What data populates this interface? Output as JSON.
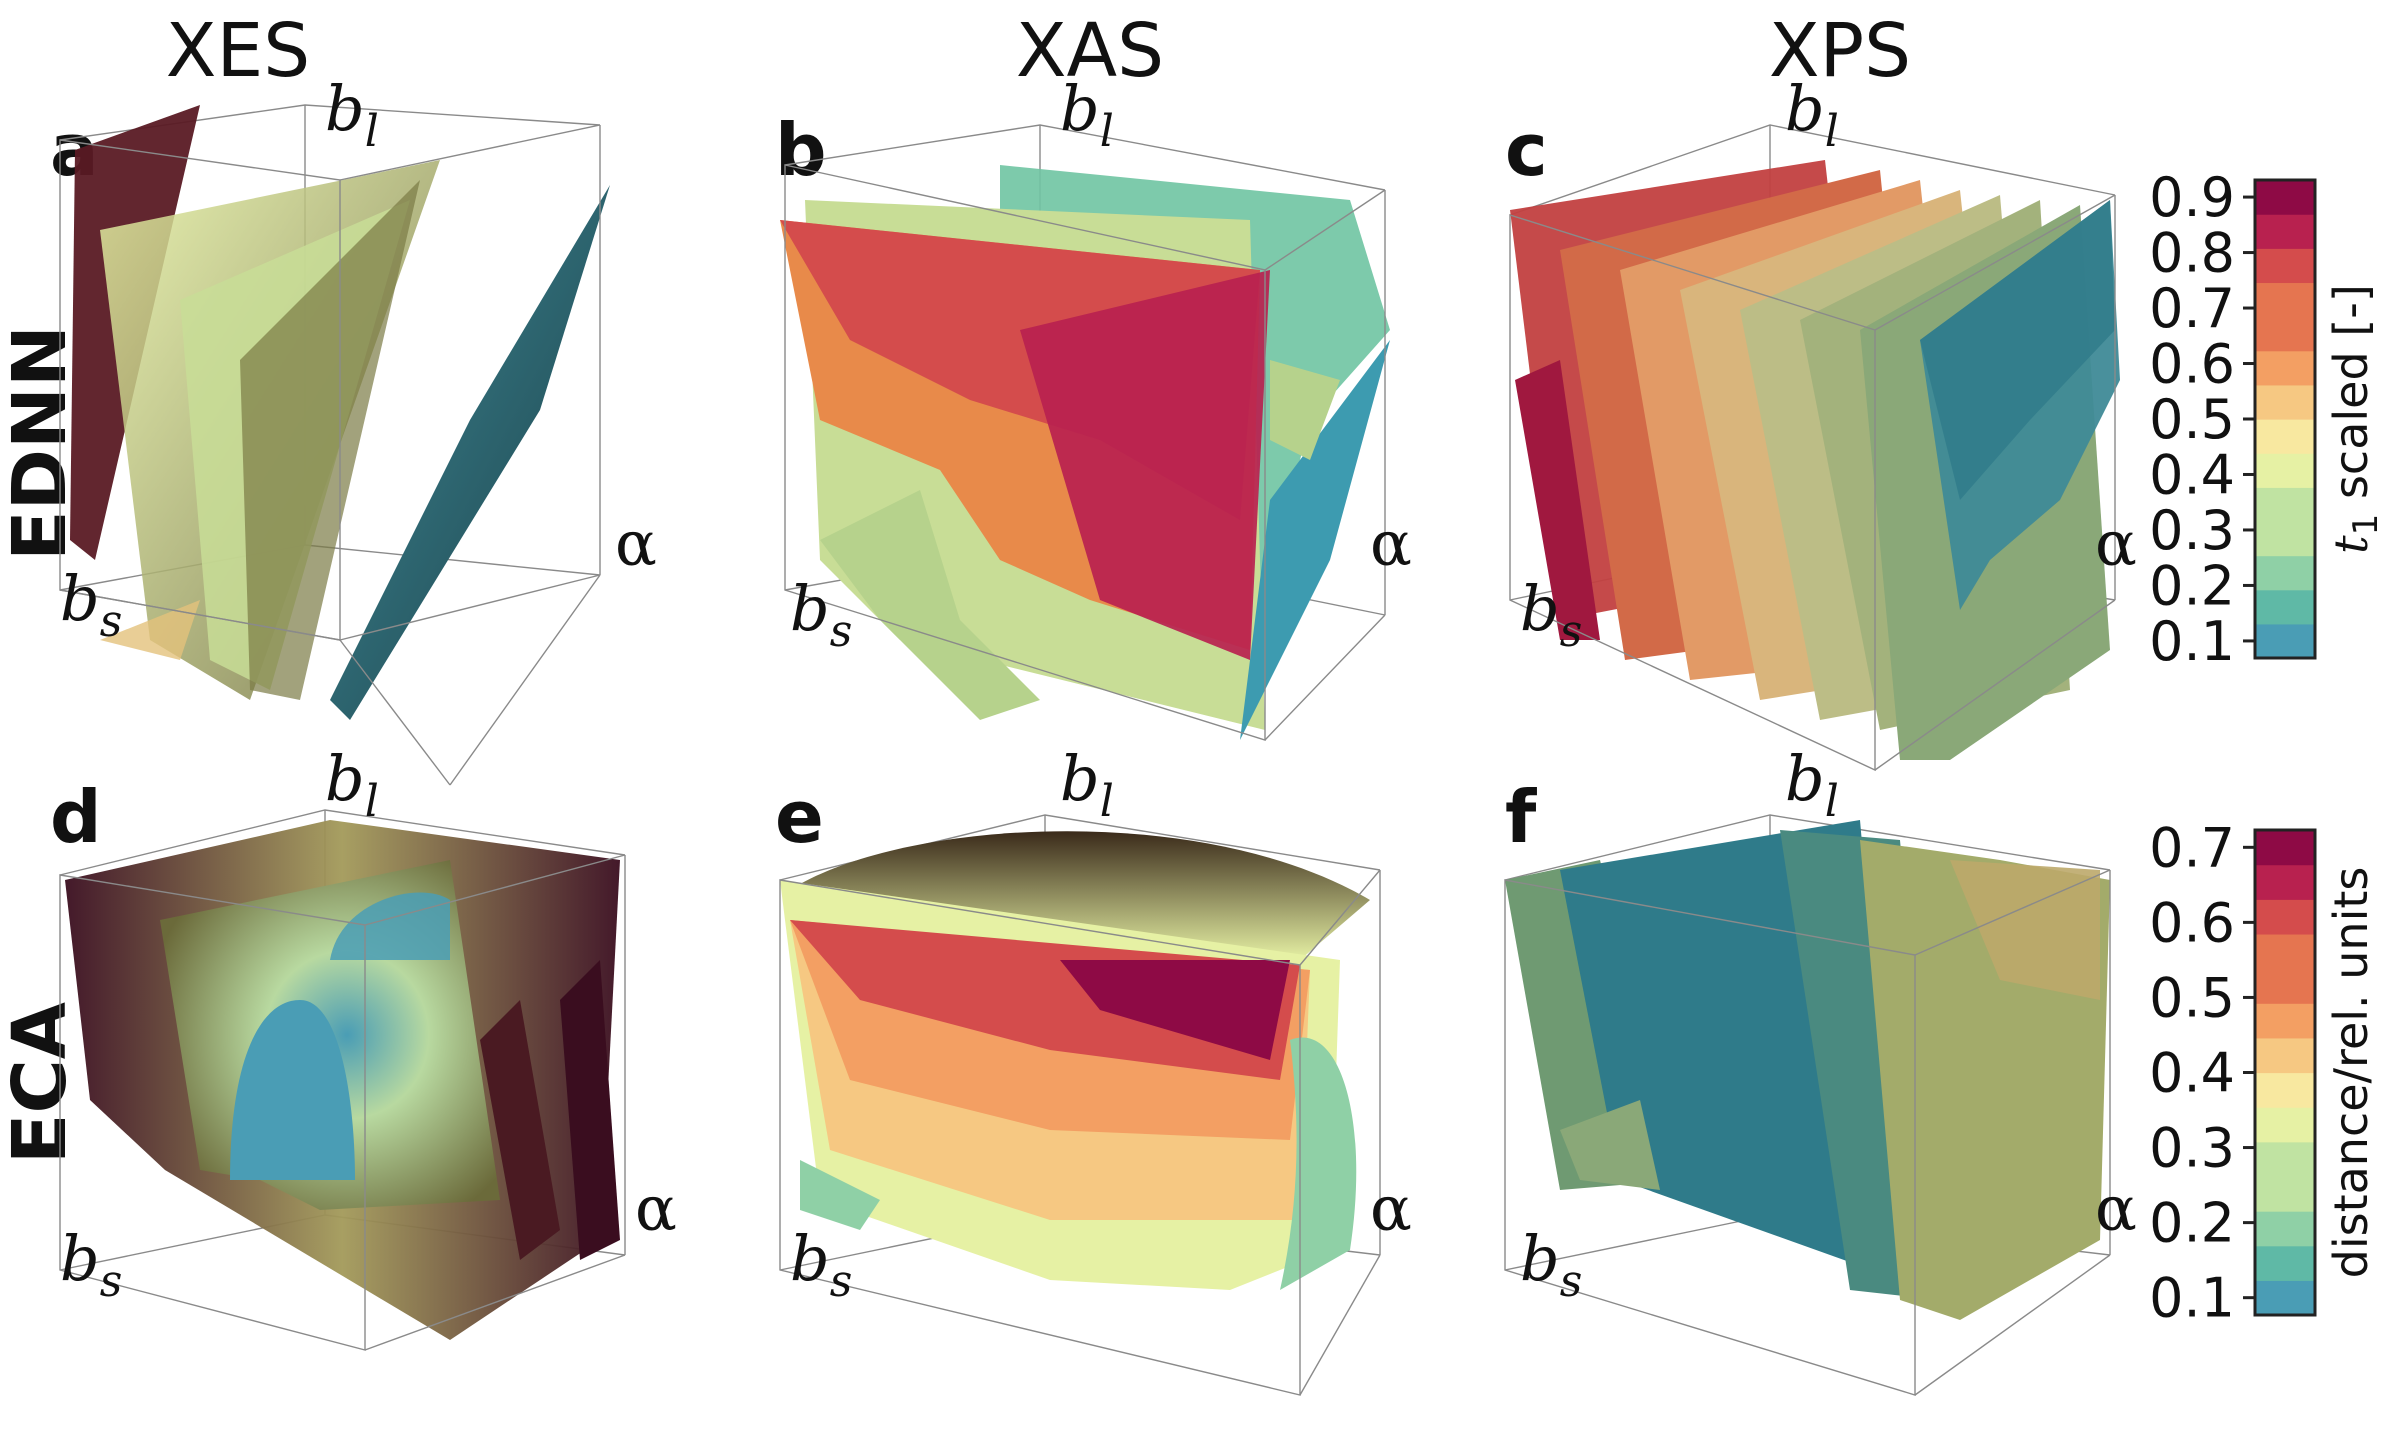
{
  "columns": [
    "XES",
    "XAS",
    "XPS"
  ],
  "rows": [
    "EDNN",
    "ECA"
  ],
  "panels": [
    {
      "letter": "a",
      "row": "EDNN",
      "column": "XES"
    },
    {
      "letter": "b",
      "row": "EDNN",
      "column": "XAS"
    },
    {
      "letter": "c",
      "row": "EDNN",
      "column": "XPS"
    },
    {
      "letter": "d",
      "row": "ECA",
      "column": "XES"
    },
    {
      "letter": "e",
      "row": "ECA",
      "column": "XAS"
    },
    {
      "letter": "f",
      "row": "ECA",
      "column": "XPS"
    }
  ],
  "axis_labels": {
    "bl": "b",
    "bl_sub": "l",
    "bs": "b",
    "bs_sub": "s",
    "alpha": "α"
  },
  "colors": {
    "c01": "#4a9db5",
    "c02": "#5fb9a6",
    "c03": "#8fd0a6",
    "c04": "#c0e3a2",
    "c05": "#e6f1a4",
    "c06": "#f8e8a0",
    "c07": "#f6c882",
    "c08": "#f39f63",
    "c09": "#e57550",
    "c10": "#d44c4c",
    "c11": "#b8214f",
    "c12": "#8e0a45"
  },
  "chart_data": [
    {
      "type": "colorbar",
      "panel_row": "EDNN",
      "label": "t",
      "label_sub": "1",
      "label_rest": " scaled [-]",
      "range": [
        0.1,
        0.9
      ],
      "ticks": [
        "0.1",
        "0.2",
        "0.3",
        "0.4",
        "0.5",
        "0.6",
        "0.7",
        "0.8",
        "0.9"
      ],
      "colormap": "Spectral_r"
    },
    {
      "type": "colorbar",
      "panel_row": "ECA",
      "label": "distance/rel. units",
      "range": [
        0.1,
        0.7
      ],
      "ticks": [
        "0.1",
        "0.2",
        "0.3",
        "0.4",
        "0.5",
        "0.6",
        "0.7"
      ],
      "colormap": "Spectral_r"
    }
  ]
}
